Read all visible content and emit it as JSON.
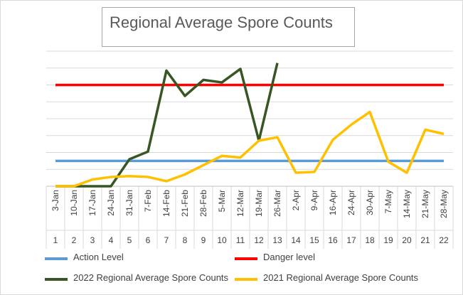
{
  "chart_data": {
    "type": "line",
    "title": "Regional Average Spore Counts",
    "categories": [
      "3-Jan",
      "10-Jan",
      "17-Jan",
      "24-Jan",
      "31-Jan",
      "7-Feb",
      "14-Feb",
      "21-Feb",
      "28-Feb",
      "5-Mar",
      "12-Mar",
      "19-Mar",
      "26-Mar",
      "2-Apr",
      "9-Apr",
      "16-Apr",
      "24-Apr",
      "30-Apr",
      "7-May",
      "14-May",
      "21-May",
      "28-May"
    ],
    "week_numbers": [
      "1",
      "2",
      "3",
      "4",
      "5",
      "6",
      "7",
      "8",
      "9",
      "10",
      "11",
      "12",
      "13",
      "14",
      "15",
      "16",
      "17",
      "18",
      "19",
      "20",
      "21",
      "22"
    ],
    "ylim": [
      0,
      8
    ],
    "grid": true,
    "legend_position": "bottom",
    "series": [
      {
        "name": "Action Level",
        "color": "#5b9bd5",
        "values": [
          1.5,
          1.5,
          1.5,
          1.5,
          1.5,
          1.5,
          1.5,
          1.5,
          1.5,
          1.5,
          1.5,
          1.5,
          1.5,
          1.5,
          1.5,
          1.5,
          1.5,
          1.5,
          1.5,
          1.5,
          1.5,
          1.5
        ]
      },
      {
        "name": "Danger level",
        "color": "#ff0000",
        "values": [
          6,
          6,
          6,
          6,
          6,
          6,
          6,
          6,
          6,
          6,
          6,
          6,
          6,
          6,
          6,
          6,
          6,
          6,
          6,
          6,
          6,
          6
        ]
      },
      {
        "name": "2022 Regional Average Spore Counts",
        "color": "#375623",
        "values": [
          0,
          0,
          0,
          0,
          1.6,
          2.05,
          6.85,
          5.35,
          6.3,
          6.15,
          6.95,
          2.7,
          7.3,
          null,
          null,
          null,
          null,
          null,
          null,
          null,
          null,
          null
        ]
      },
      {
        "name": "2021 Regional Average Spore Counts",
        "color": "#ffc000",
        "values": [
          0,
          0,
          0.4,
          0.55,
          0.6,
          0.55,
          0.3,
          0.7,
          1.25,
          1.8,
          1.7,
          2.7,
          2.9,
          0.8,
          0.85,
          2.75,
          3.65,
          4.4,
          1.45,
          0.8,
          3.35,
          3.1
        ]
      }
    ]
  }
}
